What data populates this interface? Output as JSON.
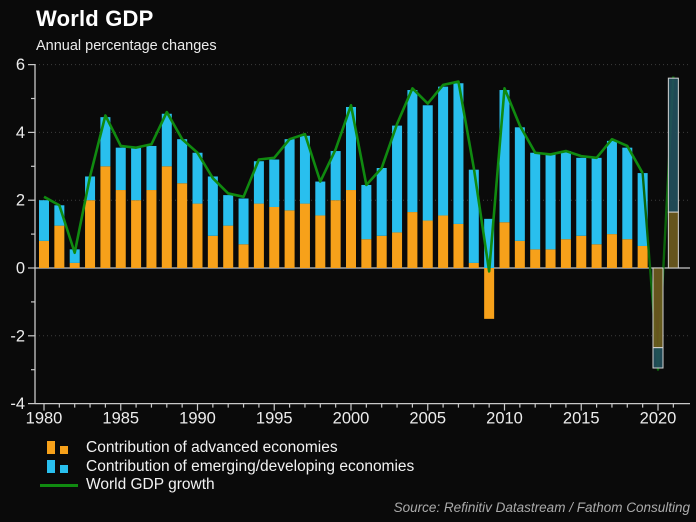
{
  "header": {
    "title": "World GDP",
    "subtitle": "Annual percentage changes"
  },
  "source": {
    "text": "Source: Refinitiv Datastream / Fathom Consulting"
  },
  "legend": [
    {
      "label": "Contribution of advanced economies",
      "color": "#f7a11a",
      "swatch": "squares"
    },
    {
      "label": "Contribution of emerging/developing economies",
      "color": "#29bfee",
      "swatch": "squares"
    },
    {
      "label": "World GDP growth",
      "color": "#108a10",
      "swatch": "line"
    }
  ],
  "colors": {
    "background": "#0a0a0a",
    "advanced": "#f7a11a",
    "emerging": "#29bfee",
    "line": "#108a10",
    "forecast_line": "#0b650b",
    "advanced_forecast": "#6e5b20",
    "emerging_forecast": "#234f5c",
    "forecast_outline": "#d4d4d4",
    "axis": "#c8c8c8",
    "grid": "#3d3d3d",
    "tick_text": "#ececec"
  },
  "chart_data": {
    "type": "bar",
    "subtype": "stacked-bars-with-line",
    "title": "World GDP",
    "subtitle": "Annual percentage changes",
    "xlabel": "",
    "ylabel": "Annual percentage change",
    "ylim": [
      -4,
      6
    ],
    "yticks": [
      6,
      4,
      2,
      0,
      -2,
      -4
    ],
    "xticks": [
      1980,
      1985,
      1990,
      1995,
      2000,
      2005,
      2010,
      2015,
      2020
    ],
    "grid": "dotted horizontal at 6, 4, 2, -2",
    "legend_position": "bottom-left",
    "x": [
      1980,
      1981,
      1982,
      1983,
      1984,
      1985,
      1986,
      1987,
      1988,
      1989,
      1990,
      1991,
      1992,
      1993,
      1994,
      1995,
      1996,
      1997,
      1998,
      1999,
      2000,
      2001,
      2002,
      2003,
      2004,
      2005,
      2006,
      2007,
      2008,
      2009,
      2010,
      2011,
      2012,
      2013,
      2014,
      2015,
      2016,
      2017,
      2018,
      2019,
      2020,
      2021
    ],
    "forecast_years": [
      2020,
      2021
    ],
    "series": [
      {
        "name": "Contribution of advanced economies",
        "type": "bar",
        "values": [
          0.8,
          1.25,
          0.15,
          2.0,
          3.0,
          2.3,
          2.0,
          2.3,
          3.0,
          2.5,
          1.9,
          0.95,
          1.25,
          0.7,
          1.9,
          1.8,
          1.7,
          1.9,
          1.55,
          2.0,
          2.3,
          0.85,
          0.95,
          1.05,
          1.65,
          1.4,
          1.55,
          1.3,
          0.15,
          -1.5,
          1.35,
          0.8,
          0.55,
          0.55,
          0.85,
          0.95,
          0.7,
          1.0,
          0.85,
          0.65,
          -2.35,
          1.65
        ]
      },
      {
        "name": "Contribution of emerging/developing economies",
        "type": "bar",
        "values": [
          1.2,
          0.6,
          0.4,
          0.7,
          1.45,
          1.25,
          1.55,
          1.3,
          1.55,
          1.3,
          1.5,
          1.75,
          0.9,
          1.35,
          1.25,
          1.4,
          2.1,
          2.0,
          1.0,
          1.45,
          2.45,
          1.6,
          2.0,
          3.15,
          3.6,
          3.4,
          3.8,
          4.15,
          2.75,
          1.45,
          3.9,
          3.35,
          2.85,
          2.8,
          2.6,
          2.3,
          2.55,
          2.75,
          2.7,
          2.15,
          -0.6,
          3.95
        ]
      },
      {
        "name": "World GDP growth",
        "type": "line",
        "values": [
          2.1,
          1.85,
          0.45,
          2.7,
          4.5,
          3.6,
          3.55,
          3.65,
          4.6,
          3.8,
          3.4,
          2.65,
          2.2,
          2.1,
          3.2,
          3.25,
          3.8,
          3.95,
          2.55,
          3.5,
          4.8,
          2.45,
          2.95,
          4.25,
          5.3,
          4.85,
          5.4,
          5.5,
          2.95,
          -0.1,
          5.3,
          4.2,
          3.4,
          3.35,
          3.45,
          3.3,
          3.25,
          3.8,
          3.6,
          2.8,
          -3.0,
          5.65
        ]
      }
    ]
  }
}
